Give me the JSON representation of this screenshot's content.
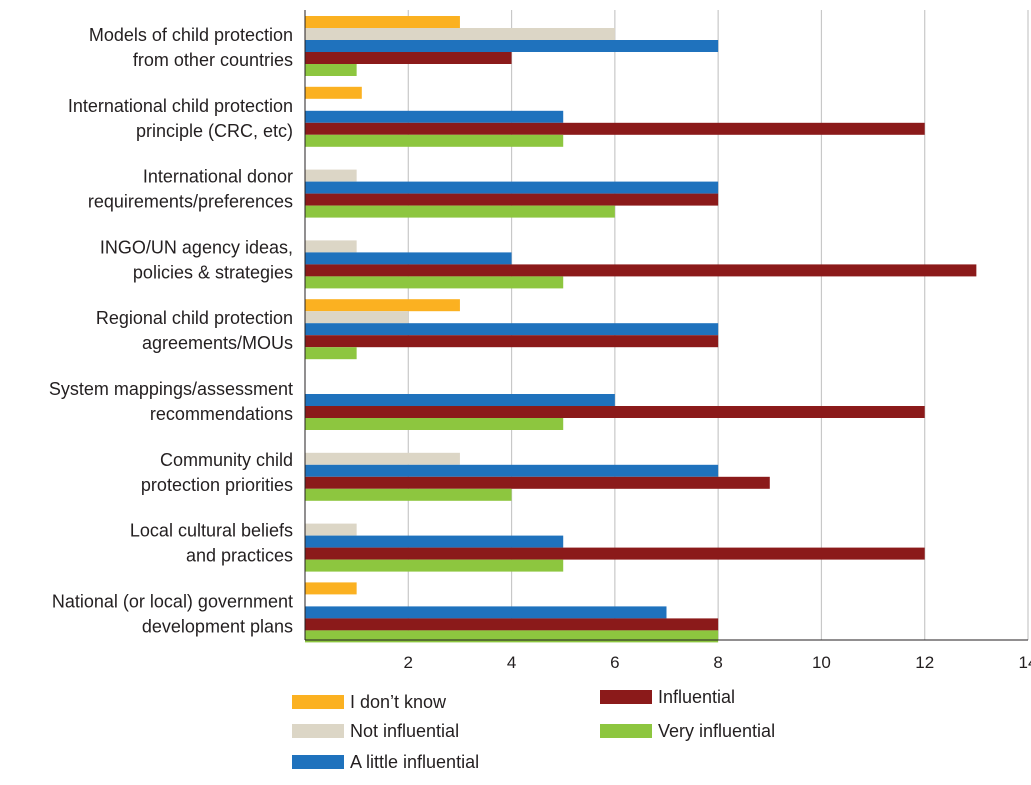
{
  "chart_data": {
    "type": "bar",
    "orientation": "horizontal",
    "categories": [
      [
        "Models of child protection",
        "from other countries"
      ],
      [
        "International child protection",
        "principle (CRC, etc)"
      ],
      [
        "International donor",
        "requirements/preferences"
      ],
      [
        "INGO/UN agency ideas,",
        "policies & strategies"
      ],
      [
        "Regional child protection",
        "agreements/MOUs"
      ],
      [
        "System mappings/assessment",
        "recommendations"
      ],
      [
        "Community child",
        "protection priorities"
      ],
      [
        "Local cultural beliefs",
        "and practices"
      ],
      [
        "National (or local) government",
        "development plans"
      ]
    ],
    "series": [
      {
        "name": "I don’t know",
        "color": "#fbb121",
        "values": [
          3,
          1.1,
          0,
          0,
          3,
          0,
          0,
          0,
          1
        ]
      },
      {
        "name": "Not influential",
        "color": "#dcd6c6",
        "values": [
          6,
          0,
          1,
          1,
          2,
          0,
          3,
          1,
          0
        ]
      },
      {
        "name": "A little influential",
        "color": "#1f72bd",
        "values": [
          8,
          5,
          8,
          4,
          8,
          6,
          8,
          5,
          7
        ]
      },
      {
        "name": "Influential",
        "color": "#8b1a1a",
        "values": [
          4,
          12,
          8,
          13,
          8,
          12,
          9,
          12,
          8
        ]
      },
      {
        "name": "Very influential",
        "color": "#8dc63f",
        "values": [
          1,
          5,
          6,
          5,
          1,
          5,
          4,
          5,
          8
        ]
      }
    ],
    "xticks": [
      2,
      4,
      6,
      8,
      10,
      12,
      14
    ],
    "xlim": [
      0,
      14
    ],
    "grid": "vertical",
    "legend_position": "bottom",
    "legend_order": [
      "I don’t know",
      "Influential",
      "Not influential",
      "Very influential",
      "A little influential"
    ]
  }
}
